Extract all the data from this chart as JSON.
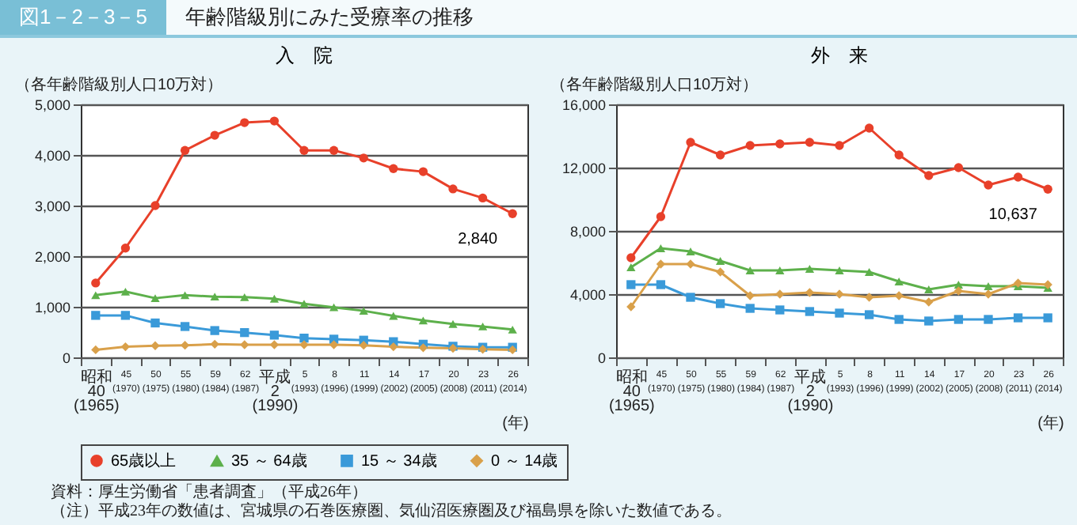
{
  "chart_data": [
    {
      "type": "line",
      "title": "入　院",
      "ylabel": "（各年齢階級別人口10万対）",
      "xlabel": "(年)",
      "categories": [
        "昭和\n40\n(1965)",
        "45\n(1970)",
        "50\n(1975)",
        "55\n(1980)",
        "59\n(1984)",
        "62\n(1987)",
        "平成\n2\n(1990)",
        "5\n(1993)",
        "8\n(1996)",
        "11\n(1999)",
        "14\n(2002)",
        "17\n(2005)",
        "20\n(2008)",
        "23\n(2011)",
        "26\n(2014)"
      ],
      "series": [
        {
          "name": "65歳以上",
          "color": "#e8402a",
          "marker": "circle",
          "values": [
            1470,
            2160,
            3000,
            4090,
            4390,
            4640,
            4670,
            4090,
            4090,
            3940,
            3730,
            3670,
            3330,
            3150,
            2840
          ]
        },
        {
          "name": "35 ～ 64歳",
          "color": "#5db04b",
          "marker": "triangle",
          "values": [
            1230,
            1300,
            1170,
            1230,
            1200,
            1190,
            1160,
            1060,
            990,
            920,
            820,
            730,
            660,
            610,
            550
          ]
        },
        {
          "name": "15 ～ 34歳",
          "color": "#3a9ad9",
          "marker": "square",
          "values": [
            830,
            830,
            680,
            610,
            530,
            490,
            440,
            380,
            360,
            340,
            310,
            260,
            220,
            200,
            200
          ]
        },
        {
          "name": "0 ～ 14歳",
          "color": "#d9a04a",
          "marker": "diamond",
          "values": [
            150,
            210,
            230,
            240,
            260,
            250,
            250,
            250,
            250,
            240,
            210,
            190,
            180,
            160,
            150
          ]
        }
      ],
      "ylim": [
        0,
        5000
      ],
      "yticks": [
        0,
        {
          "value": 1000,
          "label": "1,000"
        },
        {
          "value": 2000,
          "label": "2,000"
        },
        {
          "value": 3000,
          "label": "3,000"
        },
        {
          "value": 4000,
          "label": "4,000"
        },
        {
          "value": 5000,
          "label": "5,000"
        }
      ],
      "grid": "y",
      "legend": "bottom",
      "annotations": [
        "図1－2－3－5",
        "年齢階級別にみた受療率の推移",
        {
          "text": "2,840",
          "x": "26\n(2014)",
          "y": 2840
        },
        "資料：厚生労働省「患者調査」（平成26年）",
        "（注）平成23年の数値は、宮城県の石巻医療圏、気仙沼医療圏及び福島県を除いた数値である。"
      ]
    },
    {
      "type": "line",
      "title": "外　来",
      "ylabel": "（各年齢階級別人口10万対）",
      "xlabel": "(年)",
      "categories": [
        "昭和\n40\n(1965)",
        "45\n(1970)",
        "50\n(1975)",
        "55\n(1980)",
        "59\n(1984)",
        "62\n(1987)",
        "平成\n2\n(1990)",
        "5\n(1993)",
        "8\n(1996)",
        "11\n(1999)",
        "14\n(2002)",
        "17\n(2005)",
        "20\n(2008)",
        "23\n(2011)",
        "26\n(2014)"
      ],
      "series": [
        {
          "name": "65歳以上",
          "color": "#e8402a",
          "marker": "circle",
          "values": [
            6300,
            8900,
            13600,
            12800,
            13400,
            13500,
            13600,
            13400,
            14500,
            12800,
            11500,
            12000,
            10900,
            11400,
            10637
          ]
        },
        {
          "name": "35 ～ 64歳",
          "color": "#5db04b",
          "marker": "triangle",
          "values": [
            5700,
            6900,
            6700,
            6100,
            5500,
            5500,
            5600,
            5500,
            5400,
            4800,
            4300,
            4600,
            4500,
            4500,
            4400
          ]
        },
        {
          "name": "15 ～ 34歳",
          "color": "#3a9ad9",
          "marker": "square",
          "values": [
            4600,
            4600,
            3800,
            3400,
            3100,
            3000,
            2900,
            2800,
            2700,
            2400,
            2300,
            2400,
            2400,
            2500,
            2500
          ]
        },
        {
          "name": "0 ～ 14歳",
          "color": "#d9a04a",
          "marker": "diamond",
          "values": [
            3200,
            5900,
            5900,
            5400,
            3900,
            4000,
            4100,
            4000,
            3800,
            3900,
            3500,
            4200,
            4000,
            4700,
            4600
          ]
        }
      ],
      "ylim": [
        0,
        16000
      ],
      "yticks": [
        0,
        {
          "value": 4000,
          "label": "4,000"
        },
        {
          "value": 8000,
          "label": "8,000"
        },
        {
          "value": 12000,
          "label": "12,000"
        },
        {
          "value": 16000,
          "label": "16,000"
        }
      ],
      "grid": "y",
      "legend": "bottom",
      "annotations": [
        {
          "text": "10,637",
          "x": "26\n(2014)",
          "y": 10637
        }
      ]
    }
  ]
}
